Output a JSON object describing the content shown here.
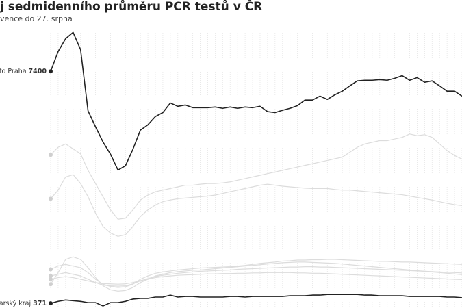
{
  "chart_data": {
    "type": "line",
    "title": "j sedmidenního průměru PCR testů v ČR",
    "subtitle": "vence do 27. srpna",
    "ylim": [
      0,
      9500
    ],
    "series": [
      {
        "color": "#dcdcdc",
        "values": [
          4870,
          5100,
          5200,
          5050,
          4900,
          4400,
          4000,
          3600,
          3200,
          2920,
          2950,
          3200,
          3500,
          3650,
          3750,
          3800,
          3850,
          3900,
          3950,
          3950,
          3980,
          4000,
          4000,
          4020,
          4050,
          4100,
          4150,
          4200,
          4250,
          4300,
          4350,
          4400,
          4450,
          4500,
          4550,
          4600,
          4650,
          4700,
          4750,
          4800,
          4950,
          5100,
          5200,
          5250,
          5300,
          5300,
          5350,
          5400,
          5500,
          5450,
          5480,
          5400,
          5200,
          5000,
          4850,
          4740
        ]
      },
      {
        "color": "#dcdcdc",
        "values": [
          3540,
          3800,
          4200,
          4270,
          4000,
          3600,
          3100,
          2700,
          2500,
          2400,
          2450,
          2700,
          3000,
          3200,
          3350,
          3450,
          3500,
          3540,
          3560,
          3580,
          3600,
          3620,
          3650,
          3700,
          3750,
          3800,
          3850,
          3900,
          3950,
          3980,
          3950,
          3920,
          3900,
          3880,
          3860,
          3850,
          3850,
          3850,
          3820,
          3800,
          3800,
          3780,
          3760,
          3740,
          3720,
          3700,
          3680,
          3660,
          3620,
          3580,
          3540,
          3500,
          3450,
          3400,
          3360,
          3330
        ]
      },
      {
        "color": "#dcdcdc",
        "values": [
          1400,
          1500,
          1550,
          1500,
          1450,
          1300,
          1100,
          950,
          880,
          850,
          870,
          950,
          1100,
          1200,
          1280,
          1320,
          1350,
          1380,
          1400,
          1420,
          1440,
          1450,
          1460,
          1470,
          1480,
          1500,
          1520,
          1550,
          1580,
          1600,
          1620,
          1650,
          1660,
          1680,
          1680,
          1690,
          1690,
          1700,
          1700,
          1690,
          1680,
          1670,
          1660,
          1650,
          1640,
          1640,
          1630,
          1620,
          1620,
          1610,
          1600,
          1590,
          1580,
          1570,
          1560,
          1550
        ]
      },
      {
        "color": "#dcdcdc",
        "values": [
          1200,
          1250,
          1300,
          1250,
          1200,
          1100,
          1000,
          920,
          900,
          890,
          900,
          960,
          1050,
          1120,
          1180,
          1220,
          1250,
          1280,
          1300,
          1320,
          1340,
          1350,
          1360,
          1370,
          1380,
          1400,
          1410,
          1420,
          1430,
          1440,
          1450,
          1460,
          1470,
          1470,
          1480,
          1480,
          1470,
          1470,
          1460,
          1450,
          1440,
          1430,
          1420,
          1410,
          1400,
          1390,
          1380,
          1370,
          1360,
          1350,
          1340,
          1330,
          1320,
          1310,
          1300,
          1290
        ]
      },
      {
        "color": "#dcdcdc",
        "values": [
          1100,
          1150,
          1180,
          1150,
          1100,
          1050,
          1000,
          970,
          960,
          950,
          960,
          1000,
          1060,
          1100,
          1150,
          1180,
          1200,
          1220,
          1230,
          1240,
          1250,
          1260,
          1260,
          1270,
          1270,
          1280,
          1280,
          1290,
          1290,
          1300,
          1300,
          1300,
          1300,
          1290,
          1290,
          1280,
          1280,
          1270,
          1260,
          1250,
          1240,
          1230,
          1220,
          1210,
          1200,
          1190,
          1180,
          1170,
          1160,
          1150,
          1140,
          1130,
          1120,
          1110,
          1100,
          1090
        ]
      },
      {
        "color": "#dcdcdc",
        "values": [
          950,
          1300,
          1700,
          1780,
          1700,
          1450,
          1150,
          900,
          780,
          740,
          760,
          850,
          1000,
          1100,
          1200,
          1250,
          1300,
          1330,
          1350,
          1370,
          1380,
          1400,
          1420,
          1440,
          1460,
          1480,
          1500,
          1520,
          1540,
          1560,
          1580,
          1600,
          1610,
          1620,
          1620,
          1610,
          1600,
          1590,
          1580,
          1560,
          1540,
          1520,
          1500,
          1480,
          1460,
          1440,
          1420,
          1400,
          1380,
          1360,
          1340,
          1320,
          1300,
          1280,
          1260,
          1240
        ]
      },
      {
        "name": "ěsto Praha",
        "color": "#222222",
        "values": [
          7400,
          8000,
          8390,
          8580,
          8060,
          6200,
          5720,
          5260,
          4890,
          4410,
          4540,
          5040,
          5620,
          5780,
          6030,
          6150,
          6440,
          6340,
          6380,
          6300,
          6300,
          6300,
          6320,
          6280,
          6320,
          6280,
          6320,
          6300,
          6340,
          6180,
          6150,
          6220,
          6280,
          6360,
          6530,
          6530,
          6650,
          6550,
          6690,
          6800,
          6960,
          7110,
          7130,
          7130,
          7150,
          7130,
          7190,
          7270,
          7130,
          7210,
          7070,
          7110,
          6960,
          6800,
          6800,
          6650
        ]
      },
      {
        "name": "lovarský kraj",
        "color": "#222222",
        "values": [
          371,
          430,
          470,
          450,
          430,
          390,
          390,
          290,
          390,
          390,
          430,
          500,
          520,
          520,
          560,
          560,
          620,
          560,
          580,
          580,
          560,
          560,
          560,
          560,
          580,
          580,
          560,
          580,
          580,
          580,
          580,
          580,
          600,
          600,
          600,
          620,
          620,
          640,
          640,
          640,
          640,
          640,
          620,
          620,
          600,
          600,
          600,
          600,
          580,
          580,
          580,
          580,
          580,
          560,
          560,
          540
        ]
      }
    ]
  }
}
